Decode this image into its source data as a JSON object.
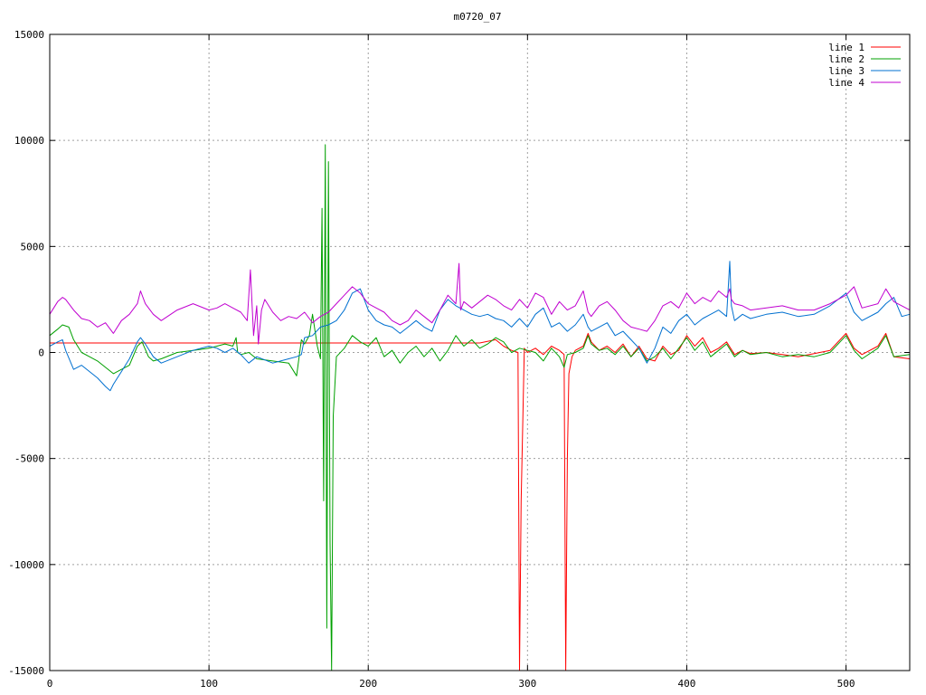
{
  "chart_data": {
    "type": "line",
    "title": "m0720_07",
    "xlabel": "",
    "ylabel": "",
    "xlim": [
      0,
      540
    ],
    "ylim": [
      -15000,
      15000
    ],
    "xticks": [
      0,
      100,
      200,
      300,
      400,
      500
    ],
    "yticks": [
      -15000,
      -10000,
      -5000,
      0,
      5000,
      10000,
      15000
    ],
    "grid": true,
    "legend_position": "top-right",
    "series": [
      {
        "name": "line 1",
        "color": "#ff0000",
        "x": [
          0,
          150,
          270,
          280,
          285,
          290,
          294,
          295,
          296,
          298,
          300,
          305,
          310,
          315,
          320,
          323,
          324,
          325,
          326,
          328,
          330,
          335,
          338,
          340,
          345,
          350,
          355,
          360,
          365,
          370,
          375,
          380,
          385,
          390,
          395,
          400,
          405,
          410,
          415,
          420,
          425,
          430,
          435,
          440,
          450,
          460,
          470,
          480,
          490,
          500,
          505,
          510,
          520,
          525,
          530,
          540
        ],
        "y": [
          450,
          450,
          450,
          600,
          300,
          100,
          0,
          -15000,
          -7000,
          200,
          0,
          200,
          -100,
          300,
          100,
          -100,
          -15000,
          -5000,
          -1000,
          -200,
          100,
          300,
          900,
          500,
          100,
          300,
          0,
          400,
          -200,
          300,
          -300,
          -400,
          300,
          -100,
          100,
          800,
          300,
          700,
          0,
          200,
          500,
          -100,
          100,
          -50,
          0,
          -100,
          -200,
          -50,
          100,
          900,
          200,
          -100,
          300,
          900,
          -200,
          -300
        ]
      },
      {
        "name": "line 2",
        "color": "#00a000",
        "x": [
          0,
          5,
          8,
          12,
          15,
          20,
          25,
          30,
          35,
          40,
          45,
          50,
          55,
          58,
          62,
          65,
          70,
          80,
          90,
          100,
          105,
          110,
          115,
          117,
          118,
          120,
          125,
          130,
          140,
          150,
          155,
          158,
          160,
          163,
          165,
          168,
          170,
          171,
          172,
          173,
          174,
          175,
          176,
          177,
          178,
          180,
          185,
          190,
          195,
          200,
          205,
          210,
          215,
          220,
          225,
          230,
          235,
          240,
          245,
          250,
          255,
          260,
          265,
          270,
          275,
          280,
          285,
          290,
          295,
          300,
          305,
          310,
          315,
          320,
          323,
          325,
          330,
          335,
          338,
          340,
          345,
          350,
          355,
          360,
          365,
          370,
          375,
          380,
          385,
          390,
          395,
          400,
          405,
          410,
          415,
          420,
          425,
          430,
          435,
          440,
          450,
          460,
          470,
          480,
          490,
          500,
          505,
          510,
          520,
          525,
          530,
          540
        ],
        "y": [
          800,
          1100,
          1300,
          1200,
          600,
          0,
          -200,
          -400,
          -700,
          -1000,
          -800,
          -600,
          300,
          500,
          -200,
          -400,
          -300,
          0,
          100,
          200,
          300,
          400,
          300,
          700,
          0,
          -100,
          0,
          -300,
          -400,
          -500,
          -1100,
          600,
          400,
          800,
          1800,
          300,
          -300,
          6800,
          -7000,
          9800,
          -13000,
          9000,
          -9000,
          -15000,
          -3000,
          -200,
          200,
          800,
          500,
          300,
          700,
          -200,
          100,
          -500,
          0,
          300,
          -200,
          200,
          -400,
          100,
          800,
          300,
          600,
          200,
          400,
          700,
          500,
          0,
          200,
          100,
          0,
          -400,
          200,
          -200,
          -700,
          -100,
          0,
          200,
          800,
          400,
          100,
          200,
          -100,
          300,
          -200,
          200,
          -400,
          -200,
          200,
          -300,
          200,
          700,
          100,
          500,
          -200,
          100,
          400,
          -200,
          100,
          -100,
          0,
          -200,
          -100,
          -200,
          0,
          800,
          100,
          -300,
          200,
          800,
          -200,
          -100
        ]
      },
      {
        "name": "line 3",
        "color": "#0070d0",
        "x": [
          0,
          5,
          8,
          10,
          15,
          20,
          25,
          30,
          35,
          38,
          40,
          45,
          50,
          55,
          57,
          60,
          65,
          70,
          80,
          90,
          100,
          105,
          110,
          115,
          120,
          125,
          130,
          140,
          150,
          155,
          158,
          160,
          165,
          170,
          175,
          180,
          185,
          190,
          195,
          200,
          205,
          210,
          215,
          220,
          225,
          230,
          235,
          240,
          245,
          250,
          255,
          260,
          265,
          270,
          275,
          280,
          285,
          290,
          295,
          300,
          305,
          310,
          315,
          320,
          325,
          330,
          335,
          338,
          340,
          345,
          350,
          355,
          360,
          365,
          370,
          375,
          380,
          385,
          390,
          395,
          400,
          405,
          410,
          415,
          420,
          425,
          427,
          428,
          430,
          435,
          440,
          450,
          460,
          470,
          480,
          490,
          500,
          505,
          510,
          520,
          525,
          530,
          535,
          540
        ],
        "y": [
          300,
          500,
          600,
          100,
          -800,
          -600,
          -900,
          -1200,
          -1600,
          -1800,
          -1500,
          -900,
          -300,
          500,
          700,
          400,
          -200,
          -500,
          -200,
          100,
          300,
          200,
          0,
          200,
          -100,
          -500,
          -200,
          -500,
          -300,
          -200,
          -100,
          700,
          800,
          1200,
          1300,
          1500,
          2000,
          2800,
          3000,
          2000,
          1500,
          1300,
          1200,
          900,
          1200,
          1500,
          1200,
          1000,
          2000,
          2500,
          2200,
          2000,
          1800,
          1700,
          1800,
          1600,
          1500,
          1200,
          1600,
          1200,
          1800,
          2100,
          1200,
          1400,
          1000,
          1300,
          1800,
          1200,
          1000,
          1200,
          1400,
          800,
          1000,
          600,
          200,
          -500,
          200,
          1200,
          900,
          1500,
          1800,
          1300,
          1600,
          1800,
          2000,
          1700,
          4300,
          2200,
          1500,
          1800,
          1600,
          1800,
          1900,
          1700,
          1800,
          2200,
          2800,
          1900,
          1500,
          1900,
          2300,
          2600,
          1700,
          1800
        ]
      },
      {
        "name": "line 4",
        "color": "#c000d0",
        "x": [
          0,
          5,
          8,
          10,
          15,
          20,
          25,
          30,
          35,
          40,
          45,
          50,
          55,
          57,
          60,
          65,
          70,
          80,
          90,
          100,
          105,
          110,
          115,
          120,
          124,
          126,
          128,
          130,
          131,
          133,
          135,
          140,
          145,
          150,
          155,
          160,
          165,
          170,
          175,
          180,
          185,
          190,
          195,
          200,
          205,
          210,
          215,
          220,
          225,
          230,
          235,
          240,
          245,
          250,
          255,
          257,
          258,
          260,
          265,
          270,
          275,
          280,
          285,
          290,
          295,
          300,
          305,
          310,
          315,
          320,
          325,
          330,
          335,
          338,
          340,
          345,
          350,
          355,
          360,
          365,
          370,
          375,
          380,
          385,
          390,
          395,
          400,
          405,
          410,
          415,
          420,
          425,
          427,
          428,
          430,
          435,
          440,
          450,
          460,
          470,
          480,
          490,
          500,
          505,
          510,
          520,
          525,
          530,
          535,
          540
        ],
        "y": [
          1800,
          2400,
          2600,
          2500,
          2000,
          1600,
          1500,
          1200,
          1400,
          900,
          1500,
          1800,
          2300,
          2900,
          2300,
          1800,
          1500,
          2000,
          2300,
          2000,
          2100,
          2300,
          2100,
          1900,
          1500,
          3900,
          800,
          2200,
          400,
          2000,
          2500,
          1900,
          1500,
          1700,
          1600,
          1900,
          1400,
          1700,
          1900,
          2300,
          2700,
          3100,
          2800,
          2300,
          2100,
          1900,
          1500,
          1300,
          1500,
          2000,
          1700,
          1400,
          2000,
          2700,
          2300,
          4200,
          2000,
          2400,
          2100,
          2400,
          2700,
          2500,
          2200,
          2000,
          2500,
          2100,
          2800,
          2600,
          1800,
          2400,
          2000,
          2200,
          2900,
          1900,
          1700,
          2200,
          2400,
          2000,
          1500,
          1200,
          1100,
          1000,
          1500,
          2200,
          2400,
          2100,
          2800,
          2300,
          2600,
          2400,
          2900,
          2600,
          3000,
          2500,
          2300,
          2200,
          2000,
          2100,
          2200,
          2000,
          2000,
          2300,
          2700,
          3100,
          2100,
          2300,
          3000,
          2400,
          2200,
          2000
        ]
      }
    ]
  }
}
